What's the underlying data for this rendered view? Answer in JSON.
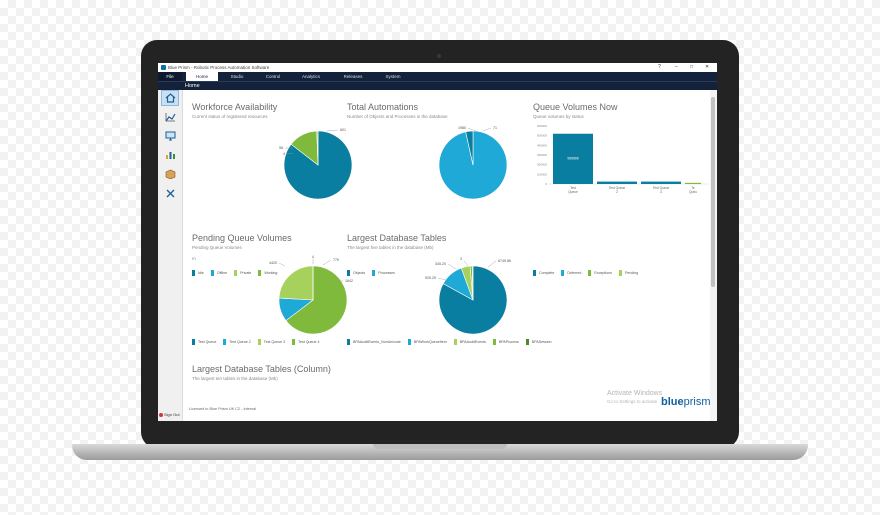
{
  "window": {
    "title": "Blue Prism - Robotic Process Automation Software",
    "controls": [
      "?",
      "–",
      "□",
      "✕"
    ]
  },
  "menu": [
    "File",
    "Home",
    "Studio",
    "Control",
    "Analytics",
    "Releases",
    "System"
  ],
  "breadcrumb": "Home",
  "sidebar": {
    "icons": [
      "home-icon",
      "chart-icon",
      "monitor-icon",
      "bar-chart-icon",
      "package-icon",
      "tools-icon"
    ],
    "sign_out": "Sign Out"
  },
  "tiles": {
    "workforce": {
      "title": "Workforce Availability",
      "subtitle": "Current status of registered resources",
      "labels": [
        "601",
        "98",
        "4"
      ],
      "legend": [
        "Idle",
        "Offline",
        "Private",
        "Working"
      ]
    },
    "automations": {
      "title": "Total Automations",
      "subtitle": "Number of Objects and Processes in the database",
      "labels": [
        "1980",
        "71"
      ],
      "legend": [
        "Objects",
        "Processes"
      ]
    },
    "queue_volumes": {
      "title": "Queue Volumes Now",
      "subtitle": "Queue volumes by status",
      "y_ticks": [
        "600000",
        "500000",
        "400000",
        "300000",
        "200000",
        "100000",
        "0"
      ],
      "bar_text": "999999",
      "categories": [
        "Test Queue",
        "Test Queue 2",
        "Test Queue 3",
        "Te Queu"
      ],
      "legend": [
        "Complete",
        "Deferred",
        "Exceptions",
        "Pending"
      ]
    },
    "pending": {
      "title": "Pending Queue Volumes",
      "subtitle": "Pending Queue Volumes",
      "labels": [
        "4420",
        "770",
        "1642",
        "4"
      ],
      "corner": "m",
      "legend": [
        "Test Queue",
        "Test Queue 2",
        "Test Queue 3",
        "Test Queue 4"
      ]
    },
    "largest": {
      "title": "Largest Database Tables",
      "subtitle": "The largest five tables in the database (Mb)",
      "labels": [
        "6749.86",
        "925.25",
        "345.20",
        "3"
      ],
      "legend": [
        "BPAAuditEvents_NonUnicode",
        "BPAWorkQueueItem",
        "BPAAuditEvents",
        "BPAProcess",
        "BPASession"
      ]
    },
    "largest_column": {
      "title": "Largest Database Tables (Column)",
      "subtitle": "The largest ten tables in the database (Mb)"
    }
  },
  "footer": "Licensed to Blue Prism UK C2 - Internal",
  "watermark": {
    "title": "Activate Windows",
    "subtitle": "Go to Settings to activate"
  },
  "logo": {
    "part1": "blue",
    "part2": "prism"
  },
  "colors": {
    "teal": "#0a7ea0",
    "cyan": "#1fa9d6",
    "green": "#7fba3c",
    "lightgreen": "#a6d15d",
    "darkgreen": "#4e8a2a",
    "navy": "#14213b"
  },
  "chart_data": [
    {
      "type": "pie",
      "title": "Workforce Availability",
      "categories": [
        "Idle",
        "Offline",
        "Private",
        "Working"
      ],
      "values": [
        601,
        0,
        98,
        4
      ]
    },
    {
      "type": "pie",
      "title": "Total Automations",
      "categories": [
        "Objects",
        "Processes"
      ],
      "values": [
        1980,
        71
      ]
    },
    {
      "type": "bar",
      "title": "Queue Volumes Now",
      "categories": [
        "Test Queue",
        "Test Queue 2",
        "Test Queue 3",
        "Te Queu"
      ],
      "values": [
        520000,
        25000,
        25000,
        12000
      ],
      "ylim": [
        0,
        600000
      ]
    },
    {
      "type": "pie",
      "title": "Pending Queue Volumes",
      "categories": [
        "Test Queue",
        "Test Queue 2",
        "Test Queue 3",
        "Test Queue 4"
      ],
      "values": [
        4420,
        770,
        1642,
        4
      ]
    },
    {
      "type": "pie",
      "title": "Largest Database Tables",
      "categories": [
        "BPAAuditEvents_NonUnicode",
        "BPAWorkQueueItem",
        "BPAAuditEvents",
        "BPAProcess",
        "BPASession"
      ],
      "values": [
        6749.86,
        925.25,
        345.2,
        80,
        30
      ]
    }
  ]
}
